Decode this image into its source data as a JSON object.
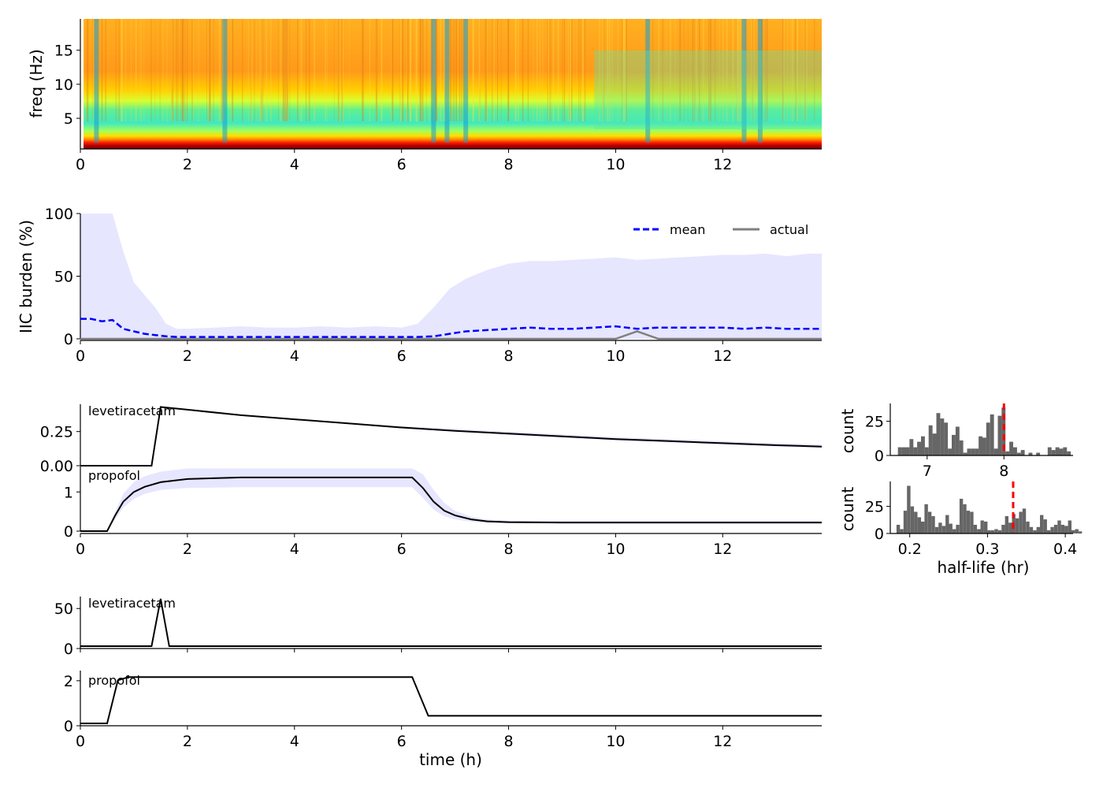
{
  "chart_data": [
    {
      "id": "spectrogram",
      "type": "heatmap",
      "ylabel": "freq (Hz)",
      "xlim": [
        0,
        13.85
      ],
      "ylim": [
        0.5,
        19.6
      ],
      "xticks": [
        0,
        2,
        4,
        6,
        8,
        10,
        12
      ],
      "yticks": [
        5,
        10,
        15
      ],
      "colormap": "jet",
      "time_markers_h": [
        0.3,
        2.7,
        6.6,
        6.85,
        7.2,
        10.6,
        12.4,
        12.7
      ],
      "colors": {
        "low_band": "#c00000",
        "mid_band": "#52e8b0",
        "high_band": "#ff9a1a",
        "artifact": "#1a9bd0"
      }
    },
    {
      "id": "iic_burden",
      "type": "line",
      "ylabel": "IIC burden (%)",
      "xlim": [
        0,
        13.85
      ],
      "ylim": [
        0,
        100
      ],
      "xticks": [
        0,
        2,
        4,
        6,
        8,
        10,
        12
      ],
      "yticks": [
        0,
        50,
        100
      ],
      "legend": {
        "placement": "top-right",
        "entries": [
          "mean",
          "actual"
        ]
      },
      "x": [
        0,
        0.2,
        0.4,
        0.6,
        0.8,
        1.0,
        1.2,
        1.4,
        1.6,
        1.8,
        2.0,
        2.5,
        3.0,
        3.5,
        4.0,
        4.5,
        5.0,
        5.5,
        6.0,
        6.3,
        6.6,
        6.9,
        7.2,
        7.6,
        8.0,
        8.4,
        8.8,
        9.2,
        9.6,
        10.0,
        10.4,
        10.8,
        11.2,
        11.6,
        12.0,
        12.4,
        12.8,
        13.2,
        13.6,
        13.85
      ],
      "series": [
        {
          "name": "mean",
          "style": "dashed",
          "color": "#0000ff",
          "values": [
            16,
            16,
            14,
            15,
            8,
            6,
            4,
            3,
            2,
            1.5,
            1.5,
            1.5,
            1.5,
            1.5,
            1.5,
            1.5,
            1.5,
            1.5,
            1.5,
            1.5,
            2,
            4,
            6,
            7,
            8,
            9,
            8,
            8,
            9,
            10,
            8,
            9,
            9,
            9,
            9,
            8,
            9,
            8,
            8,
            8
          ]
        },
        {
          "name": "actual",
          "style": "solid",
          "color": "#808080",
          "values": [
            0,
            0,
            0,
            0,
            0,
            0,
            0,
            0,
            0,
            0,
            0,
            0,
            0,
            0,
            0,
            0,
            0,
            0,
            0,
            0,
            0,
            0,
            0,
            0,
            0,
            0,
            0,
            0,
            0,
            0,
            6,
            0,
            0,
            0,
            0,
            0,
            0,
            0,
            0,
            0
          ]
        }
      ],
      "band_upper": [
        100,
        100,
        100,
        100,
        70,
        45,
        35,
        25,
        12,
        8,
        8,
        9,
        10,
        9,
        9,
        10,
        9,
        10,
        9,
        12,
        25,
        40,
        48,
        55,
        60,
        62,
        62,
        63,
        64,
        65,
        63,
        64,
        65,
        66,
        67,
        67,
        68,
        66,
        68,
        68
      ],
      "band_color": "#e6e6ff"
    },
    {
      "id": "drug_concentration",
      "type": "line",
      "panels": [
        {
          "label": "levetiracetam",
          "yticks": [
            0.0,
            0.25
          ],
          "ylim": [
            0,
            0.45
          ],
          "x": [
            0,
            1.33,
            1.5,
            2,
            3,
            4,
            5,
            6,
            7,
            8,
            9,
            10,
            11,
            12,
            13,
            13.85
          ],
          "values": [
            0,
            0,
            0.43,
            0.41,
            0.37,
            0.34,
            0.31,
            0.28,
            0.255,
            0.235,
            0.215,
            0.195,
            0.18,
            0.165,
            0.15,
            0.14
          ],
          "band_upper": [
            0,
            0,
            0.43,
            0.41,
            0.37,
            0.34,
            0.315,
            0.29,
            0.27,
            0.25,
            0.23,
            0.21,
            0.195,
            0.18,
            0.165,
            0.155
          ],
          "band_lower": [
            0,
            0,
            0.43,
            0.41,
            0.37,
            0.34,
            0.31,
            0.275,
            0.25,
            0.225,
            0.205,
            0.185,
            0.17,
            0.155,
            0.14,
            0.13
          ]
        },
        {
          "label": "propofol",
          "yticks": [
            0,
            1
          ],
          "ylim": [
            0,
            1.65
          ],
          "x": [
            0,
            0.5,
            0.65,
            0.8,
            1.0,
            1.2,
            1.5,
            2,
            3,
            4,
            5,
            6,
            6.2,
            6.4,
            6.6,
            6.8,
            7.0,
            7.3,
            7.6,
            8.0,
            9,
            10,
            11,
            12,
            13,
            13.85
          ],
          "values": [
            0,
            0,
            0.4,
            0.75,
            1.0,
            1.13,
            1.25,
            1.33,
            1.37,
            1.37,
            1.37,
            1.37,
            1.37,
            1.1,
            0.75,
            0.52,
            0.4,
            0.3,
            0.25,
            0.23,
            0.22,
            0.22,
            0.22,
            0.22,
            0.22,
            0.22
          ],
          "band_upper": [
            0,
            0,
            0.5,
            0.95,
            1.25,
            1.4,
            1.52,
            1.6,
            1.6,
            1.6,
            1.6,
            1.6,
            1.6,
            1.45,
            1.05,
            0.72,
            0.52,
            0.37,
            0.3,
            0.27,
            0.26,
            0.26,
            0.26,
            0.26,
            0.26,
            0.26
          ],
          "band_lower": [
            0,
            0,
            0.3,
            0.6,
            0.82,
            0.95,
            1.05,
            1.1,
            1.12,
            1.12,
            1.12,
            1.12,
            1.12,
            0.85,
            0.55,
            0.38,
            0.3,
            0.24,
            0.21,
            0.2,
            0.19,
            0.19,
            0.19,
            0.19,
            0.19,
            0.19
          ]
        }
      ],
      "xlim": [
        0,
        13.85
      ],
      "xticks": [
        0,
        2,
        4,
        6,
        8,
        10,
        12
      ],
      "band_color": "#e6e6ff"
    },
    {
      "id": "half_life_histograms",
      "type": "bar",
      "ylabel": "count",
      "xlabel": "half-life (hr)",
      "panels": [
        {
          "xlim": [
            6.52,
            8.9
          ],
          "xticks": [
            7,
            8
          ],
          "yticks": [
            0,
            25
          ],
          "ylim": [
            0,
            38
          ],
          "bin_start": 6.62,
          "bin_width": 0.05,
          "counts": [
            6,
            6,
            6,
            12,
            6,
            10,
            14,
            6,
            22,
            16,
            31,
            27,
            24,
            5,
            15,
            21,
            11,
            2,
            5,
            5,
            5,
            14,
            13,
            24,
            30,
            5,
            29,
            35,
            3,
            10,
            6,
            2,
            4,
            0,
            2,
            0,
            2,
            0,
            0,
            6,
            4,
            6,
            5,
            6,
            3,
            0
          ],
          "marker": 8.0
        },
        {
          "xlim": [
            0.175,
            0.41
          ],
          "xticks": [
            0.2,
            0.3,
            0.4
          ],
          "yticks": [
            0,
            25
          ],
          "ylim": [
            0,
            48
          ],
          "bin_start": 0.183,
          "bin_width": 0.0045,
          "counts": [
            8,
            4,
            21,
            44,
            25,
            20,
            15,
            11,
            27,
            20,
            16,
            6,
            10,
            7,
            17,
            9,
            4,
            8,
            32,
            27,
            21,
            20,
            8,
            4,
            12,
            11,
            3,
            3,
            4,
            3,
            8,
            16,
            10,
            18,
            14,
            20,
            23,
            11,
            6,
            3,
            6,
            17,
            13,
            3,
            6,
            8,
            12,
            8,
            7,
            12,
            3,
            4,
            2
          ],
          "marker": 0.333
        }
      ],
      "bar_color": "#666666",
      "marker_color": "#ff0000"
    },
    {
      "id": "drug_dosing",
      "type": "line",
      "xlabel": "time (h)",
      "xlim": [
        0,
        13.85
      ],
      "xticks": [
        0,
        2,
        4,
        6,
        8,
        10,
        12
      ],
      "panels": [
        {
          "label": "levetiracetam",
          "yticks": [
            0,
            50
          ],
          "ylim": [
            0,
            65
          ],
          "x": [
            0,
            1.33,
            1.5,
            1.66,
            13.85
          ],
          "values": [
            0,
            0,
            62,
            0,
            0
          ]
        },
        {
          "label": "propofol",
          "yticks": [
            0,
            2
          ],
          "ylim": [
            0,
            2.45
          ],
          "x": [
            0,
            0.5,
            0.7,
            0.9,
            6.2,
            6.5,
            13.85
          ],
          "values": [
            0,
            0,
            2.0,
            2.15,
            2.15,
            0.35,
            0.35
          ]
        }
      ]
    }
  ]
}
